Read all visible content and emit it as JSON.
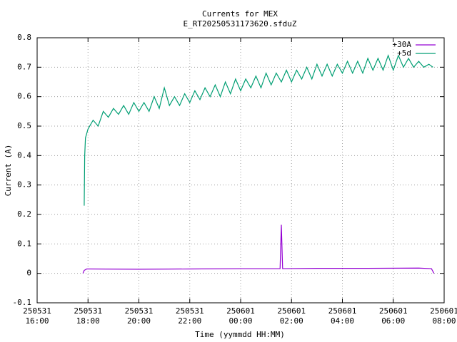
{
  "chart_data": {
    "type": "line",
    "title": "Currents for MEX",
    "subtitle": "E_RT20250531173620.sfduZ",
    "x_label": "Time (yymmdd HH:MM)",
    "y_label": "Current (A)",
    "xlim": [
      0,
      16
    ],
    "xticks": [
      {
        "value": 0,
        "label": "250531\n16:00"
      },
      {
        "value": 2,
        "label": "250531\n18:00"
      },
      {
        "value": 4,
        "label": "250531\n20:00"
      },
      {
        "value": 6,
        "label": "250531\n22:00"
      },
      {
        "value": 8,
        "label": "250601\n00:00"
      },
      {
        "value": 10,
        "label": "250601\n02:00"
      },
      {
        "value": 12,
        "label": "250601\n04:00"
      },
      {
        "value": 14,
        "label": "250601\n06:00"
      },
      {
        "value": 16,
        "label": "250601\n08:00"
      }
    ],
    "ylim": [
      -0.1,
      0.8
    ],
    "yticks": [
      -0.1,
      0,
      0.1,
      0.2,
      0.3,
      0.4,
      0.5,
      0.6,
      0.7,
      0.8
    ],
    "grid": true,
    "legend": "top-right",
    "series": [
      {
        "name": "+30A",
        "color": "#9400d3",
        "x": [
          1.8,
          1.85,
          1.95,
          4,
          6,
          8,
          9.55,
          9.6,
          9.65,
          11,
          13,
          15,
          15.5,
          15.6
        ],
        "values": [
          0,
          0.01,
          0.015,
          0.014,
          0.015,
          0.016,
          0.016,
          0.165,
          0.016,
          0.017,
          0.017,
          0.018,
          0.016,
          0
        ]
      },
      {
        "name": "+5d",
        "color": "#009e73",
        "x": [
          1.85,
          1.87,
          1.9,
          2.0,
          2.2,
          2.4,
          2.6,
          2.8,
          3.0,
          3.2,
          3.4,
          3.6,
          3.8,
          4.0,
          4.2,
          4.4,
          4.6,
          4.8,
          5.0,
          5.2,
          5.4,
          5.6,
          5.8,
          6.0,
          6.2,
          6.4,
          6.6,
          6.8,
          7.0,
          7.2,
          7.4,
          7.6,
          7.8,
          8.0,
          8.2,
          8.4,
          8.6,
          8.8,
          9.0,
          9.2,
          9.4,
          9.6,
          9.8,
          10.0,
          10.2,
          10.4,
          10.6,
          10.8,
          11.0,
          11.2,
          11.4,
          11.6,
          11.8,
          12.0,
          12.2,
          12.4,
          12.6,
          12.8,
          13.0,
          13.2,
          13.4,
          13.6,
          13.8,
          14.0,
          14.2,
          14.4,
          14.6,
          14.8,
          15.0,
          15.2,
          15.4,
          15.56
        ],
        "values": [
          0.23,
          0.4,
          0.46,
          0.49,
          0.52,
          0.5,
          0.55,
          0.53,
          0.56,
          0.54,
          0.57,
          0.54,
          0.58,
          0.55,
          0.58,
          0.55,
          0.6,
          0.56,
          0.63,
          0.57,
          0.6,
          0.57,
          0.61,
          0.58,
          0.62,
          0.59,
          0.63,
          0.6,
          0.64,
          0.6,
          0.65,
          0.61,
          0.66,
          0.62,
          0.66,
          0.63,
          0.67,
          0.63,
          0.68,
          0.64,
          0.68,
          0.65,
          0.69,
          0.65,
          0.69,
          0.66,
          0.7,
          0.66,
          0.71,
          0.67,
          0.71,
          0.67,
          0.71,
          0.68,
          0.72,
          0.68,
          0.72,
          0.68,
          0.73,
          0.69,
          0.73,
          0.69,
          0.74,
          0.69,
          0.74,
          0.7,
          0.73,
          0.7,
          0.72,
          0.7,
          0.71,
          0.7
        ]
      }
    ]
  }
}
